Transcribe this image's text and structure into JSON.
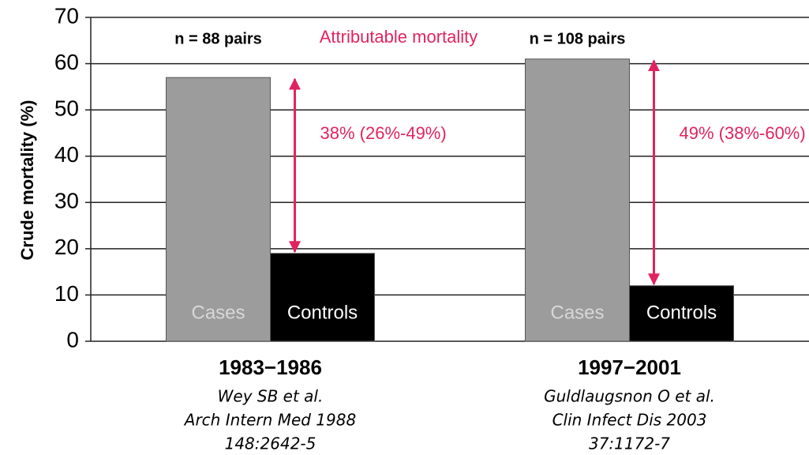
{
  "chart_data": {
    "type": "bar",
    "title_annotation": "Attributable mortality",
    "y_label": "Crude mortality (%)",
    "categories": [
      "1983−1986",
      "1997−2001"
    ],
    "references": [
      [
        "Wey SB et al.",
        "Arch Intern Med 1988",
        "148:2642-5"
      ],
      [
        "Guldlaugsnon O et al.",
        "Clin Infect Dis 2003",
        "37:1172-7"
      ]
    ],
    "pair_labels": [
      "n = 88 pairs",
      "n = 108 pairs"
    ],
    "difference_labels": [
      "38% (26%-49%)",
      "49% (38%-60%)"
    ],
    "series": [
      {
        "name": "Cases",
        "color": "#9c9c9c",
        "label_color": "#d8d8d8",
        "values": [
          57,
          61
        ]
      },
      {
        "name": "Controls",
        "color": "#000000",
        "label_color": "#ffffff",
        "values": [
          19,
          12
        ]
      }
    ],
    "annotation_color": "#e0245e",
    "ylim": [
      0,
      70
    ],
    "yticks": [
      0,
      10,
      20,
      30,
      40,
      50,
      60,
      70
    ],
    "grid": true
  }
}
